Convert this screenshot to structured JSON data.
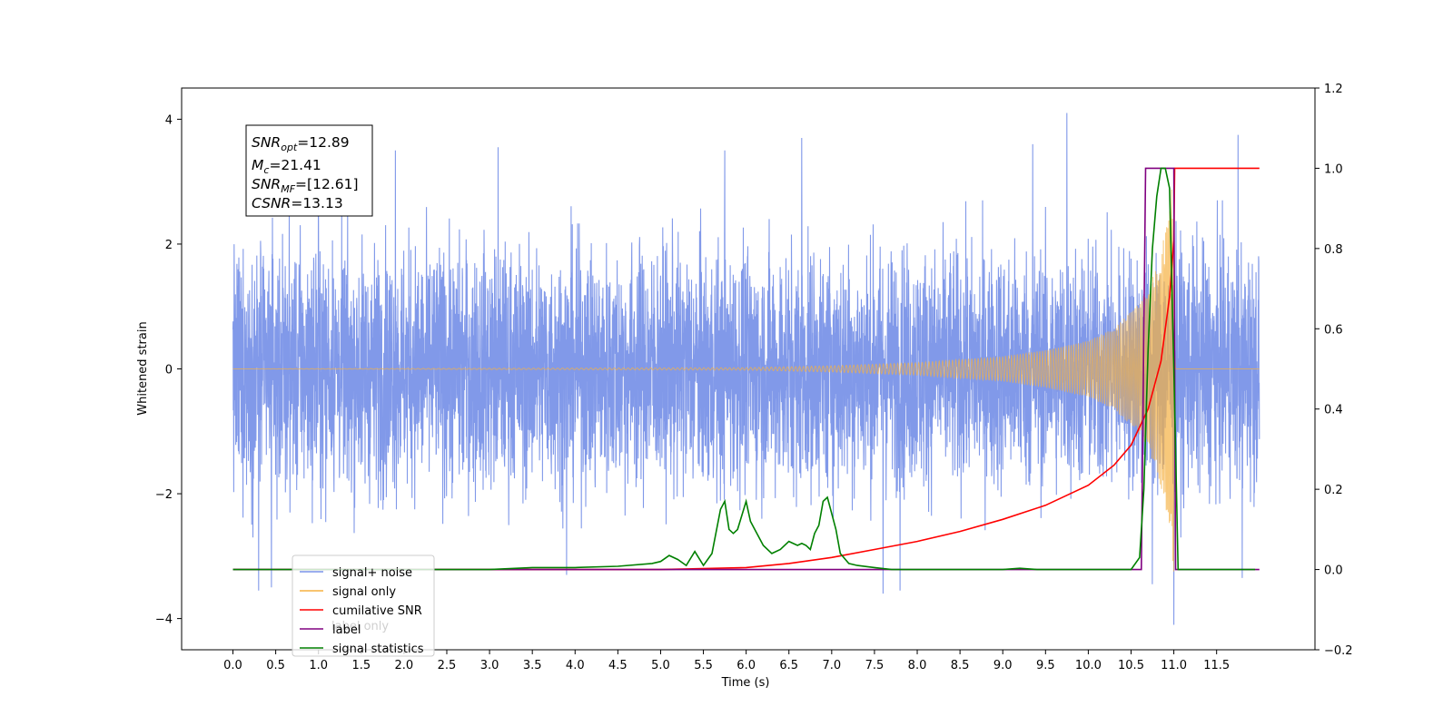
{
  "chart_data": {
    "type": "line",
    "xlabel": "Time (s)",
    "ylabel_left": "Whitened strain",
    "ylabel_right": "",
    "xlim": [
      -0.6,
      12.65
    ],
    "ylim_left": [
      -4.5,
      4.5
    ],
    "ylim_right": [
      -0.2,
      1.2
    ],
    "x_ticks": [
      "0.0",
      "0.5",
      "1.0",
      "1.5",
      "2.0",
      "2.5",
      "3.0",
      "3.5",
      "4.0",
      "4.5",
      "5.0",
      "5.5",
      "6.0",
      "6.5",
      "7.0",
      "7.5",
      "8.0",
      "8.5",
      "9.0",
      "9.5",
      "10.0",
      "10.5",
      "11.0",
      "11.5"
    ],
    "y_ticks_left": [
      "−4",
      "−2",
      "0",
      "2",
      "4"
    ],
    "y_ticks_right": [
      "−0.2",
      "0.0",
      "0.2",
      "0.4",
      "0.6",
      "0.8",
      "1.0",
      "1.2"
    ],
    "grid": false,
    "legend_position": "lower-left",
    "annotation": {
      "line1": {
        "sym": "SNR",
        "sub": "opt",
        "val": "=12.89"
      },
      "line2": {
        "sym": "M",
        "sub": "c",
        "val": "=21.41"
      },
      "line3": {
        "sym": "SNR",
        "sub": "MF",
        "val": "=[12.61]"
      },
      "line4": {
        "sym": "CSNR",
        "sub": "",
        "val": "=13.13"
      }
    },
    "series": [
      {
        "name": "signal+ noise",
        "axis": "left",
        "color": "#7a94e8",
        "description_values": "whitened noisy strain, roughly uniform amplitude ±2.5 with peaks up to ±4.1",
        "x_range": [
          0.0,
          12.0
        ],
        "peaks": [
          {
            "x": 0.3,
            "y": -3.55
          },
          {
            "x": 0.45,
            "y": -3.5
          },
          {
            "x": 1.0,
            "y": 3.1
          },
          {
            "x": 1.9,
            "y": 3.5
          },
          {
            "x": 3.1,
            "y": 3.55
          },
          {
            "x": 3.9,
            "y": -3.3
          },
          {
            "x": 5.75,
            "y": 3.5
          },
          {
            "x": 6.65,
            "y": 3.7
          },
          {
            "x": 7.6,
            "y": -3.6
          },
          {
            "x": 7.8,
            "y": -3.55
          },
          {
            "x": 9.35,
            "y": 3.6
          },
          {
            "x": 9.75,
            "y": 4.1
          },
          {
            "x": 10.75,
            "y": -3.45
          },
          {
            "x": 11.0,
            "y": -4.1
          },
          {
            "x": 11.75,
            "y": 3.75
          },
          {
            "x": 11.8,
            "y": -3.35
          }
        ]
      },
      {
        "name": "signal only",
        "axis": "left",
        "color": "#f5b041",
        "description_values": "chirp growing from ~0 to ±3.3 near 11.0 s then ending",
        "envelope": [
          [
            0.0,
            0.0
          ],
          [
            6.0,
            0.02
          ],
          [
            7.0,
            0.05
          ],
          [
            8.0,
            0.1
          ],
          [
            9.0,
            0.2
          ],
          [
            9.5,
            0.3
          ],
          [
            10.0,
            0.45
          ],
          [
            10.3,
            0.65
          ],
          [
            10.6,
            1.05
          ],
          [
            10.8,
            1.6
          ],
          [
            10.95,
            2.5
          ],
          [
            11.0,
            3.3
          ],
          [
            11.02,
            0.0
          ],
          [
            12.0,
            0.0
          ]
        ]
      },
      {
        "name": "cumilative SNR",
        "axis": "right",
        "color": "#ff0000",
        "x": [
          0.0,
          5.0,
          6.0,
          6.5,
          7.0,
          7.5,
          8.0,
          8.5,
          9.0,
          9.5,
          10.0,
          10.3,
          10.5,
          10.7,
          10.85,
          10.95,
          11.0,
          11.01,
          12.0
        ],
        "values": [
          0.0,
          0.0,
          0.005,
          0.015,
          0.03,
          0.05,
          0.07,
          0.095,
          0.125,
          0.16,
          0.21,
          0.26,
          0.31,
          0.4,
          0.52,
          0.68,
          0.82,
          1.0,
          1.0
        ]
      },
      {
        "name": "label",
        "axis": "right",
        "color": "#800080",
        "x": [
          0.0,
          10.62,
          10.67,
          11.0,
          11.02,
          12.0
        ],
        "values": [
          0.0,
          0.0,
          1.0,
          1.0,
          0.0,
          0.0
        ]
      },
      {
        "name": "signal statistics",
        "axis": "right",
        "color": "#008000",
        "x": [
          0.0,
          3.0,
          3.5,
          4.0,
          4.5,
          4.9,
          5.0,
          5.1,
          5.2,
          5.3,
          5.4,
          5.5,
          5.6,
          5.7,
          5.75,
          5.8,
          5.85,
          5.9,
          6.0,
          6.05,
          6.1,
          6.2,
          6.3,
          6.4,
          6.5,
          6.6,
          6.65,
          6.7,
          6.75,
          6.8,
          6.85,
          6.9,
          6.95,
          7.05,
          7.1,
          7.2,
          7.3,
          7.5,
          7.7,
          8.0,
          9.0,
          9.2,
          9.4,
          10.0,
          10.5,
          10.6,
          10.65,
          10.7,
          10.75,
          10.8,
          10.85,
          10.9,
          10.95,
          11.0,
          11.05,
          11.06,
          11.95
        ],
        "values": [
          0.0,
          0.0,
          0.005,
          0.005,
          0.008,
          0.015,
          0.02,
          0.035,
          0.025,
          0.01,
          0.045,
          0.01,
          0.04,
          0.15,
          0.17,
          0.1,
          0.09,
          0.1,
          0.17,
          0.12,
          0.1,
          0.06,
          0.04,
          0.05,
          0.07,
          0.06,
          0.065,
          0.06,
          0.05,
          0.09,
          0.11,
          0.17,
          0.18,
          0.1,
          0.04,
          0.015,
          0.01,
          0.005,
          0.0,
          0.0,
          0.0,
          0.003,
          0.0,
          0.0,
          0.0,
          0.03,
          0.2,
          0.55,
          0.8,
          0.93,
          1.0,
          1.0,
          0.95,
          0.5,
          0.0,
          0.0,
          0.0
        ]
      }
    ],
    "legend": [
      {
        "label": "signal+ noise",
        "color": "#7a94e8"
      },
      {
        "label": "signal only",
        "color": "#f5b041"
      },
      {
        "label": "cumilative SNR",
        "color": "#ff0000"
      },
      {
        "label": "label",
        "color": "#800080"
      },
      {
        "label": "signal statistics",
        "color": "#008000"
      }
    ],
    "hidden_legend_fragment": "label only"
  }
}
